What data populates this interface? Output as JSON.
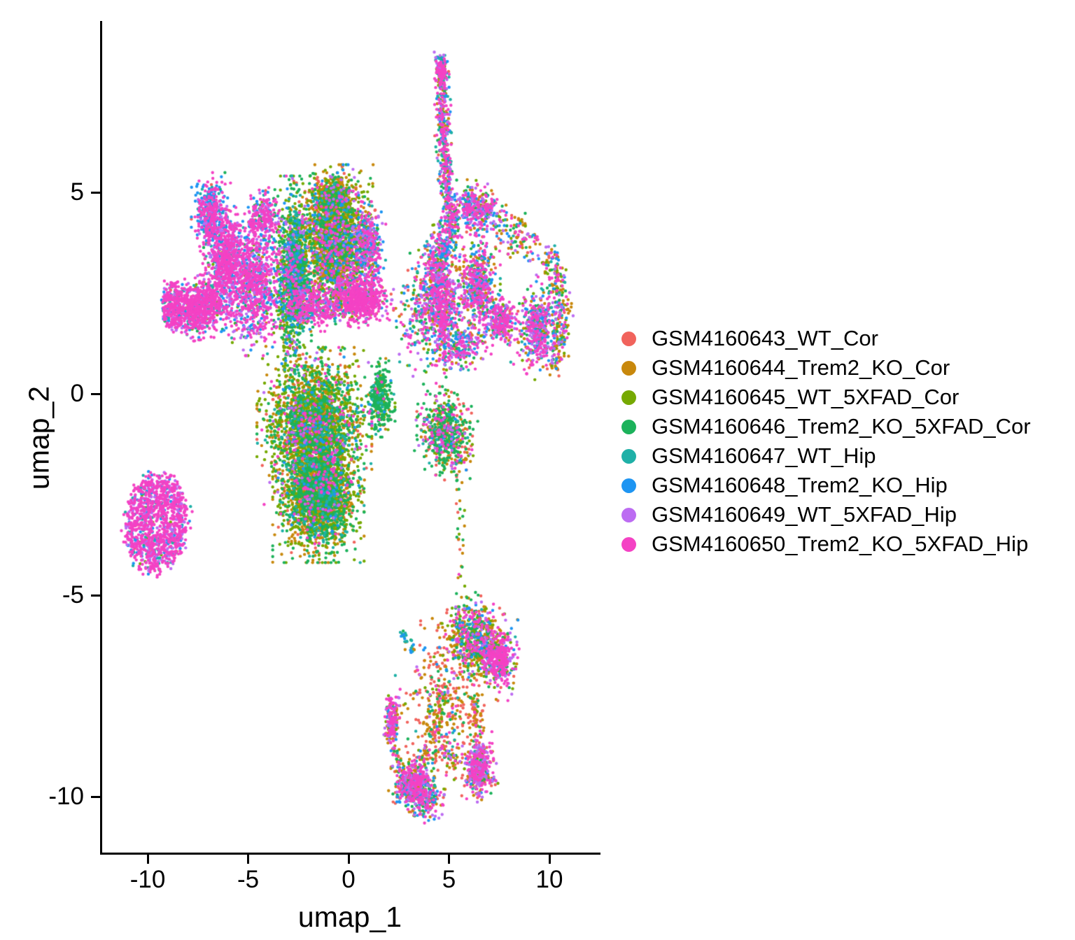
{
  "chart_data": {
    "type": "scatter",
    "title": "",
    "xlabel": "umap_1",
    "ylabel": "umap_2",
    "xlim": [
      -12.3,
      12.5
    ],
    "ylim": [
      -11.4,
      9.2
    ],
    "xticks": [
      -10,
      -5,
      0,
      5,
      10
    ],
    "yticks": [
      5,
      0,
      -5,
      -10
    ],
    "grid": false,
    "legend_position": "right-middle",
    "point_radius_px": 2.2,
    "series": [
      {
        "name": "GSM4160643_WT_Cor",
        "color": "#F1635C"
      },
      {
        "name": "GSM4160644_Trem2_KO_Cor",
        "color": "#C8880C"
      },
      {
        "name": "GSM4160645_WT_5XFAD_Cor",
        "color": "#76A902"
      },
      {
        "name": "GSM4160646_Trem2_KO_5XFAD_Cor",
        "color": "#1CB25B"
      },
      {
        "name": "GSM4160647_WT_Hip",
        "color": "#1FB0A7"
      },
      {
        "name": "GSM4160648_Trem2_KO_Hip",
        "color": "#1E95F2"
      },
      {
        "name": "GSM4160649_WT_5XFAD_Hip",
        "color": "#BC6CF2"
      },
      {
        "name": "GSM4160650_Trem2_KO_5XFAD_Hip",
        "color": "#F442C4"
      }
    ],
    "clusters": [
      {
        "id": "top-dome",
        "kind": "gauss",
        "cx": -0.65,
        "cy": 3.8,
        "rx": 1.55,
        "ry": 1.45,
        "rot": 0,
        "n": 2000,
        "w": [
          0.12,
          0.29,
          0.22,
          0.17,
          0.03,
          0.05,
          0.05,
          0.07
        ]
      },
      {
        "id": "dome-cap",
        "kind": "gauss",
        "cx": -0.8,
        "cy": 4.9,
        "rx": 0.9,
        "ry": 0.45,
        "rot": 0,
        "n": 380,
        "w": [
          0.08,
          0.48,
          0.2,
          0.14,
          0.02,
          0.03,
          0.02,
          0.03
        ]
      },
      {
        "id": "dome-right-mix",
        "kind": "gauss",
        "cx": 1.0,
        "cy": 3.6,
        "rx": 0.7,
        "ry": 0.9,
        "rot": 0,
        "n": 350,
        "w": [
          0.06,
          0.1,
          0.08,
          0.06,
          0.06,
          0.2,
          0.18,
          0.26
        ]
      },
      {
        "id": "green-spike",
        "kind": "gauss",
        "cx": -2.75,
        "cy": 3.0,
        "rx": 0.75,
        "ry": 1.85,
        "rot": 0,
        "n": 1350,
        "w": [
          0.03,
          0.07,
          0.3,
          0.34,
          0.1,
          0.07,
          0.04,
          0.05
        ]
      },
      {
        "id": "central-upper",
        "kind": "gauss",
        "cx": -1.7,
        "cy": -0.8,
        "rx": 2.2,
        "ry": 1.5,
        "rot": 0,
        "n": 2500,
        "w": [
          0.1,
          0.27,
          0.3,
          0.2,
          0.05,
          0.02,
          0.02,
          0.04
        ]
      },
      {
        "id": "central-lower",
        "kind": "gauss",
        "cx": -1.5,
        "cy": -2.5,
        "rx": 1.75,
        "ry": 1.3,
        "rot": 0,
        "n": 2200,
        "w": [
          0.09,
          0.25,
          0.28,
          0.27,
          0.05,
          0.02,
          0.01,
          0.03
        ]
      },
      {
        "id": "green-nub",
        "kind": "gauss",
        "cx": 1.6,
        "cy": -0.1,
        "rx": 0.55,
        "ry": 0.75,
        "rot": 0,
        "n": 300,
        "w": [
          0.03,
          0.05,
          0.1,
          0.72,
          0.05,
          0.02,
          0.01,
          0.02
        ]
      },
      {
        "id": "arm-top-blue",
        "kind": "gauss",
        "cx": -6.85,
        "cy": 4.45,
        "rx": 0.75,
        "ry": 0.8,
        "rot": 0,
        "n": 450,
        "w": [
          0.02,
          0.0,
          0.02,
          0.02,
          0.1,
          0.36,
          0.1,
          0.38
        ]
      },
      {
        "id": "arm-mid-pink",
        "kind": "gauss",
        "cx": -6.1,
        "cy": 3.35,
        "rx": 0.85,
        "ry": 1.05,
        "rot": -20,
        "n": 650,
        "w": [
          0.01,
          0.01,
          0.02,
          0.02,
          0.05,
          0.14,
          0.17,
          0.58
        ]
      },
      {
        "id": "left-band",
        "kind": "gauss",
        "cx": -7.35,
        "cy": 2.15,
        "rx": 1.35,
        "ry": 0.62,
        "rot": 5,
        "n": 800,
        "w": [
          0.02,
          0.01,
          0.02,
          0.02,
          0.08,
          0.12,
          0.12,
          0.61
        ]
      },
      {
        "id": "left-band-tip",
        "kind": "disk",
        "cx": -8.75,
        "cy": 2.2,
        "rx": 0.55,
        "ry": 0.6,
        "rot": 0,
        "n": 250,
        "w": [
          0.01,
          0.0,
          0.01,
          0.02,
          0.08,
          0.12,
          0.1,
          0.66
        ]
      },
      {
        "id": "pink-upper",
        "kind": "gauss",
        "cx": -4.2,
        "cy": 4.35,
        "rx": 0.8,
        "ry": 0.65,
        "rot": 0,
        "n": 250,
        "w": [
          0.02,
          0.01,
          0.04,
          0.05,
          0.05,
          0.18,
          0.15,
          0.5
        ]
      },
      {
        "id": "pink-bridge",
        "kind": "gauss",
        "cx": -4.7,
        "cy": 2.7,
        "rx": 1.25,
        "ry": 1.35,
        "rot": 0,
        "n": 900,
        "w": [
          0.02,
          0.02,
          0.05,
          0.04,
          0.06,
          0.14,
          0.19,
          0.48
        ]
      },
      {
        "id": "pink-band-mid",
        "kind": "gauss",
        "cx": -1.7,
        "cy": 2.2,
        "rx": 1.3,
        "ry": 0.5,
        "rot": 0,
        "n": 350,
        "w": [
          0.03,
          0.05,
          0.08,
          0.06,
          0.04,
          0.1,
          0.14,
          0.5
        ]
      },
      {
        "id": "pink-overlay",
        "kind": "gauss",
        "cx": 0.55,
        "cy": 2.35,
        "rx": 1.3,
        "ry": 0.6,
        "rot": 0,
        "n": 650,
        "w": [
          0.04,
          0.03,
          0.02,
          0.02,
          0.02,
          0.08,
          0.11,
          0.68
        ]
      },
      {
        "id": "iso-left",
        "kind": "disk",
        "cx": -9.55,
        "cy": -3.2,
        "rx": 1.55,
        "ry": 1.2,
        "rot": 10,
        "n": 1200,
        "w": [
          0.005,
          0.005,
          0.01,
          0.01,
          0.07,
          0.11,
          0.17,
          0.62
        ]
      },
      {
        "id": "streak-cap",
        "kind": "gauss",
        "cx": 4.62,
        "cy": 8.0,
        "rx": 0.22,
        "ry": 0.38,
        "rot": 0,
        "n": 140,
        "w": [
          0.05,
          0.1,
          0.08,
          0.2,
          0.08,
          0.15,
          0.08,
          0.26
        ]
      },
      {
        "id": "streak-vert",
        "kind": "strand",
        "path": [
          [
            4.62,
            8.35
          ],
          [
            4.68,
            7.2
          ],
          [
            4.72,
            6.1
          ],
          [
            4.95,
            5.0
          ],
          [
            5.25,
            4.25
          ]
        ],
        "width": 0.16,
        "n": 520,
        "w": [
          0.06,
          0.12,
          0.06,
          0.1,
          0.1,
          0.18,
          0.1,
          0.28
        ]
      },
      {
        "id": "streak-join",
        "kind": "strand",
        "path": [
          [
            5.2,
            4.2
          ],
          [
            4.6,
            3.6
          ],
          [
            4.15,
            3.15
          ]
        ],
        "width": 0.3,
        "n": 260,
        "w": [
          0.05,
          0.1,
          0.06,
          0.08,
          0.1,
          0.18,
          0.14,
          0.29
        ]
      },
      {
        "id": "gap-sparse",
        "kind": "gauss",
        "cx": 3.3,
        "cy": 1.8,
        "rx": 0.85,
        "ry": 1.3,
        "rot": 0,
        "n": 120,
        "w": [
          0.1,
          0.15,
          0.12,
          0.15,
          0.08,
          0.12,
          0.13,
          0.15
        ]
      },
      {
        "id": "rc-left-lobe",
        "kind": "gauss",
        "cx": 4.55,
        "cy": 2.3,
        "rx": 0.95,
        "ry": 1.15,
        "rot": 15,
        "n": 820,
        "w": [
          0.07,
          0.1,
          0.05,
          0.07,
          0.07,
          0.19,
          0.15,
          0.3
        ]
      },
      {
        "id": "rc-small-dome",
        "kind": "gauss",
        "cx": 6.35,
        "cy": 4.6,
        "rx": 0.95,
        "ry": 0.55,
        "rot": 0,
        "n": 360,
        "w": [
          0.09,
          0.12,
          0.06,
          0.08,
          0.04,
          0.15,
          0.17,
          0.29
        ]
      },
      {
        "id": "rc-mid-lobe",
        "kind": "gauss",
        "cx": 6.45,
        "cy": 2.7,
        "rx": 0.85,
        "ry": 0.95,
        "rot": 0,
        "n": 560,
        "w": [
          0.1,
          0.14,
          0.08,
          0.1,
          0.07,
          0.14,
          0.13,
          0.24
        ]
      },
      {
        "id": "rc-top-conn",
        "kind": "strand",
        "path": [
          [
            7.3,
            4.2
          ],
          [
            8.3,
            3.9
          ],
          [
            9.4,
            3.6
          ]
        ],
        "width": 0.28,
        "n": 130,
        "w": [
          0.1,
          0.2,
          0.1,
          0.12,
          0.06,
          0.12,
          0.12,
          0.18
        ]
      },
      {
        "id": "rc-right-edge",
        "kind": "strand",
        "path": [
          [
            9.9,
            3.5
          ],
          [
            10.5,
            2.7
          ],
          [
            10.65,
            1.6
          ],
          [
            10.2,
            0.7
          ]
        ],
        "width": 0.22,
        "n": 280,
        "w": [
          0.08,
          0.3,
          0.12,
          0.1,
          0.05,
          0.1,
          0.1,
          0.15
        ]
      },
      {
        "id": "rc-right-body",
        "kind": "gauss",
        "cx": 9.45,
        "cy": 1.6,
        "rx": 0.85,
        "ry": 0.95,
        "rot": -20,
        "n": 480,
        "w": [
          0.08,
          0.12,
          0.06,
          0.08,
          0.08,
          0.15,
          0.16,
          0.27
        ]
      },
      {
        "id": "rc-pink-spot",
        "kind": "gauss",
        "cx": 7.6,
        "cy": 1.8,
        "rx": 0.7,
        "ry": 0.5,
        "rot": 0,
        "n": 240,
        "w": [
          0.04,
          0.06,
          0.03,
          0.04,
          0.04,
          0.12,
          0.15,
          0.52
        ]
      },
      {
        "id": "rc-bottom-conn",
        "kind": "gauss",
        "cx": 5.6,
        "cy": 1.15,
        "rx": 1.3,
        "ry": 0.5,
        "rot": 10,
        "n": 260,
        "w": [
          0.08,
          0.12,
          0.07,
          0.09,
          0.08,
          0.16,
          0.14,
          0.26
        ]
      },
      {
        "id": "midright-green",
        "kind": "gauss",
        "cx": 4.8,
        "cy": -1.0,
        "rx": 1.15,
        "ry": 0.85,
        "rot": -15,
        "n": 650,
        "w": [
          0.16,
          0.1,
          0.12,
          0.42,
          0.03,
          0.02,
          0.05,
          0.1
        ]
      },
      {
        "id": "trail-sparse",
        "kind": "strand",
        "path": [
          [
            5.4,
            -1.9
          ],
          [
            5.55,
            -3.2
          ],
          [
            5.6,
            -4.6
          ]
        ],
        "width": 0.12,
        "n": 30,
        "w": [
          0.3,
          0.3,
          0.1,
          0.25,
          0.0,
          0.0,
          0.0,
          0.05
        ]
      },
      {
        "id": "teal-streaklet",
        "kind": "strand",
        "path": [
          [
            2.6,
            -5.9
          ],
          [
            3.2,
            -6.4
          ]
        ],
        "width": 0.08,
        "n": 25,
        "w": [
          0.0,
          0.1,
          0.0,
          0.1,
          0.45,
          0.35,
          0.0,
          0.0
        ]
      },
      {
        "id": "bot-sparse-red",
        "kind": "gauss",
        "cx": 4.8,
        "cy": -7.7,
        "rx": 1.9,
        "ry": 1.8,
        "rot": 0,
        "n": 380,
        "w": [
          0.45,
          0.3,
          0.06,
          0.1,
          0.02,
          0.02,
          0.02,
          0.03
        ]
      },
      {
        "id": "bot-strand-a",
        "kind": "strand",
        "path": [
          [
            4.9,
            -7.3
          ],
          [
            4.3,
            -8.3
          ],
          [
            3.7,
            -9.2
          ]
        ],
        "width": 0.14,
        "n": 90,
        "w": [
          0.35,
          0.35,
          0.08,
          0.12,
          0.02,
          0.02,
          0.02,
          0.04
        ]
      },
      {
        "id": "bot-strand-b",
        "kind": "strand",
        "path": [
          [
            6.2,
            -7.5
          ],
          [
            6.5,
            -8.4
          ]
        ],
        "width": 0.14,
        "n": 60,
        "w": [
          0.3,
          0.35,
          0.1,
          0.1,
          0.02,
          0.03,
          0.04,
          0.06
        ]
      },
      {
        "id": "bot-strand-c",
        "kind": "strand",
        "path": [
          [
            2.2,
            -8.8
          ],
          [
            2.7,
            -9.4
          ],
          [
            3.1,
            -9.7
          ]
        ],
        "width": 0.12,
        "n": 45,
        "w": [
          0.3,
          0.3,
          0.08,
          0.12,
          0.02,
          0.05,
          0.05,
          0.08
        ]
      },
      {
        "id": "bot-main",
        "kind": "gauss",
        "cx": 6.5,
        "cy": -6.15,
        "rx": 1.5,
        "ry": 0.85,
        "rot": -18,
        "n": 850,
        "w": [
          0.1,
          0.22,
          0.18,
          0.13,
          0.03,
          0.06,
          0.09,
          0.19
        ]
      },
      {
        "id": "bot-main-pink",
        "kind": "gauss",
        "cx": 7.5,
        "cy": -6.6,
        "rx": 0.6,
        "ry": 0.5,
        "rot": 0,
        "n": 260,
        "w": [
          0.02,
          0.04,
          0.02,
          0.02,
          0.02,
          0.1,
          0.22,
          0.56
        ]
      },
      {
        "id": "bot-left-pill",
        "kind": "gauss",
        "cx": 2.15,
        "cy": -8.1,
        "rx": 0.3,
        "ry": 0.55,
        "rot": 0,
        "n": 190,
        "w": [
          0.1,
          0.16,
          0.04,
          0.04,
          0.02,
          0.1,
          0.2,
          0.34
        ]
      },
      {
        "id": "bot-bl-blob",
        "kind": "gauss",
        "cx": 3.4,
        "cy": -9.8,
        "rx": 1.05,
        "ry": 0.6,
        "rot": -12,
        "n": 680,
        "w": [
          0.1,
          0.16,
          0.05,
          0.09,
          0.04,
          0.14,
          0.15,
          0.27
        ]
      },
      {
        "id": "bot-br-blob",
        "kind": "gauss",
        "cx": 6.5,
        "cy": -9.3,
        "rx": 0.7,
        "ry": 0.6,
        "rot": 20,
        "n": 420,
        "w": [
          0.13,
          0.12,
          0.06,
          0.09,
          0.03,
          0.06,
          0.26,
          0.25
        ]
      },
      {
        "id": "conn-bl-br",
        "kind": "strand",
        "path": [
          [
            4.4,
            -8.7
          ],
          [
            5.5,
            -9.1
          ]
        ],
        "width": 0.18,
        "n": 55,
        "w": [
          0.25,
          0.25,
          0.05,
          0.1,
          0.02,
          0.08,
          0.12,
          0.13
        ]
      }
    ]
  }
}
